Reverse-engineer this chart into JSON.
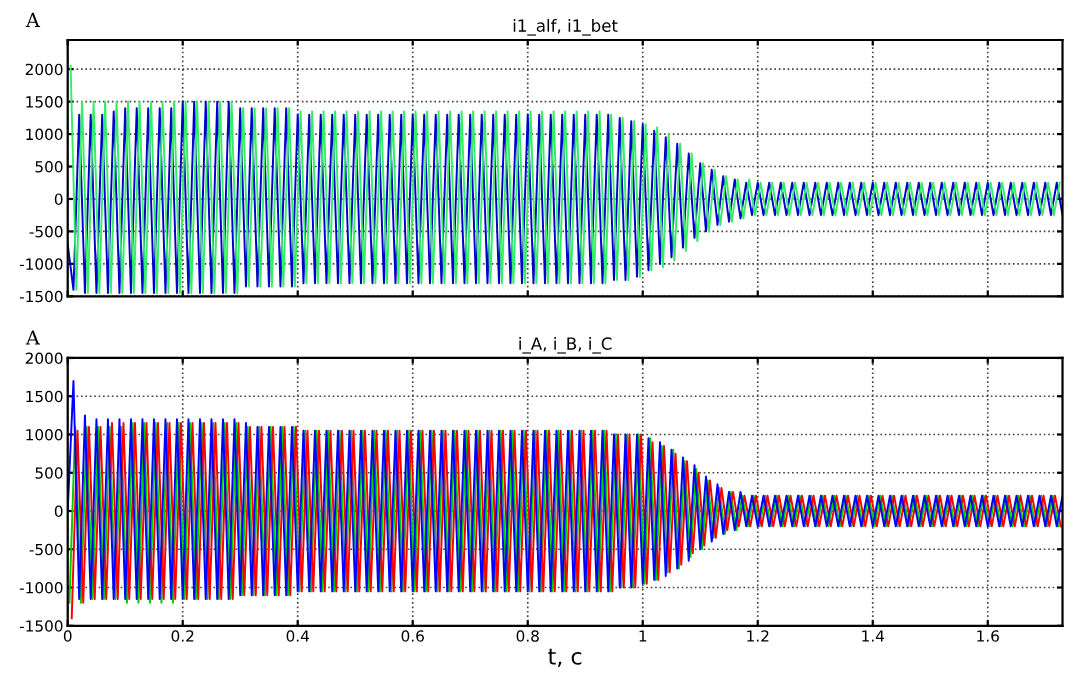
{
  "chart_data": [
    {
      "type": "line",
      "title": "i1_alf, i1_bet",
      "ylabel": "A",
      "xlim": [
        0,
        1.73
      ],
      "xticks": [
        0,
        0.2,
        0.4,
        0.6,
        0.8,
        1,
        1.2,
        1.4,
        1.6
      ],
      "ylim": [
        -1500,
        2450
      ],
      "yticks": [
        -1500,
        -1000,
        -500,
        0,
        500,
        1000,
        1500,
        2000
      ],
      "grid": true,
      "line_style": "solid",
      "tick_labels": "y",
      "series": [
        {
          "color": "#0000cc",
          "x": [
            0,
            0.01,
            0.02,
            0.03,
            0.04,
            0.05,
            0.06,
            0.07,
            0.08,
            0.09,
            0.1,
            0.11,
            0.12,
            0.13,
            0.14,
            0.15,
            0.16,
            0.17,
            0.18,
            0.19,
            0.2,
            0.21,
            0.22,
            0.23,
            0.24,
            0.25,
            0.26,
            0.27,
            0.28,
            0.29,
            0.3,
            0.31,
            0.32,
            0.33,
            0.34,
            0.35,
            0.36,
            0.37,
            0.38,
            0.39,
            0.4,
            0.41,
            0.42,
            0.43,
            0.44,
            0.45,
            0.46,
            0.47,
            0.48,
            0.49,
            0.5,
            0.51,
            0.52,
            0.53,
            0.54,
            0.55,
            0.56,
            0.57,
            0.58,
            0.59,
            0.6,
            0.61,
            0.62,
            0.63,
            0.64,
            0.65,
            0.66,
            0.67,
            0.68,
            0.69,
            0.7,
            0.71,
            0.72,
            0.73,
            0.74,
            0.75,
            0.76,
            0.77,
            0.78,
            0.79,
            0.8,
            0.81,
            0.82,
            0.83,
            0.84,
            0.85,
            0.86,
            0.87,
            0.88,
            0.89,
            0.9,
            0.91,
            0.92,
            0.93,
            0.94,
            0.95,
            0.96,
            0.97,
            0.98,
            0.99,
            1,
            1.01,
            1.02,
            1.03,
            1.04,
            1.05,
            1.06,
            1.07,
            1.08,
            1.09,
            1.1,
            1.11,
            1.12,
            1.13,
            1.14,
            1.15,
            1.16,
            1.17,
            1.18,
            1.19,
            1.2,
            1.21,
            1.22,
            1.23,
            1.24,
            1.25,
            1.26,
            1.27,
            1.28,
            1.29,
            1.3,
            1.31,
            1.32,
            1.33,
            1.34,
            1.35,
            1.36,
            1.37,
            1.38,
            1.39,
            1.4,
            1.41,
            1.42,
            1.43,
            1.44,
            1.45,
            1.46,
            1.47,
            1.48,
            1.49,
            1.5,
            1.51,
            1.52,
            1.53,
            1.54,
            1.55,
            1.56,
            1.57,
            1.58,
            1.59,
            1.6,
            1.61,
            1.62,
            1.63,
            1.64,
            1.65,
            1.66,
            1.67,
            1.68,
            1.69,
            1.7,
            1.71,
            1.72,
            1.73
          ],
          "values": [
            -700,
            -1400,
            1300,
            -1450,
            1300,
            -1450,
            1300,
            -1450,
            1350,
            -1450,
            1400,
            -1450,
            1400,
            -1450,
            1400,
            -1450,
            1400,
            -1450,
            1400,
            -1450,
            1500,
            -1450,
            1500,
            -1450,
            1500,
            -1450,
            1500,
            -1450,
            1500,
            -1450,
            1400,
            -1350,
            1400,
            -1350,
            1400,
            -1350,
            1400,
            -1350,
            1400,
            -1350,
            1300,
            -1300,
            1300,
            -1300,
            1300,
            -1300,
            1300,
            -1300,
            1300,
            -1300,
            1300,
            -1300,
            1300,
            -1300,
            1300,
            -1300,
            1300,
            -1300,
            1300,
            -1300,
            1300,
            -1300,
            1300,
            -1300,
            1300,
            -1300,
            1300,
            -1300,
            1300,
            -1300,
            1300,
            -1300,
            1300,
            -1300,
            1300,
            -1300,
            1300,
            -1300,
            1300,
            -1300,
            1300,
            -1300,
            1300,
            -1300,
            1300,
            -1300,
            1300,
            -1300,
            1300,
            -1300,
            1300,
            -1300,
            1300,
            -1300,
            1300,
            -1250,
            1250,
            -1250,
            1200,
            -1200,
            1150,
            -1100,
            1050,
            -1000,
            950,
            -900,
            850,
            -750,
            700,
            -600,
            550,
            -500,
            450,
            -400,
            350,
            -350,
            300,
            -300,
            250,
            -250,
            250,
            -250,
            250,
            -250,
            250,
            -250,
            250,
            -250,
            250,
            -250,
            250,
            -250,
            250,
            -250,
            250,
            -250,
            250,
            -250,
            250,
            -250,
            250,
            -250,
            250,
            -250,
            250,
            -250,
            250,
            -250,
            250,
            -250,
            250,
            -250,
            250,
            -250,
            250,
            -250,
            250,
            -250,
            250,
            -250,
            250,
            -250,
            250,
            -250,
            250,
            -250,
            250,
            -250,
            250,
            -250,
            250,
            -250,
            250,
            -250
          ]
        },
        {
          "color": "#33ee66",
          "x": [
            0.005,
            0.015,
            0.025,
            0.035,
            0.045,
            0.055,
            0.065,
            0.075,
            0.085,
            0.095,
            0.105,
            0.115,
            0.125,
            0.135,
            0.145,
            0.155,
            0.165,
            0.175,
            0.185,
            0.195,
            0.205,
            0.215,
            0.225,
            0.235,
            0.245,
            0.255,
            0.265,
            0.275,
            0.285,
            0.295,
            0.305,
            0.315,
            0.325,
            0.335,
            0.345,
            0.355,
            0.365,
            0.375,
            0.385,
            0.395,
            0.405,
            0.415,
            0.425,
            0.435,
            0.445,
            0.455,
            0.465,
            0.475,
            0.485,
            0.495,
            0.505,
            0.515,
            0.525,
            0.535,
            0.545,
            0.555,
            0.565,
            0.575,
            0.585,
            0.595,
            0.605,
            0.615,
            0.625,
            0.635,
            0.645,
            0.655,
            0.665,
            0.675,
            0.685,
            0.695,
            0.705,
            0.715,
            0.725,
            0.735,
            0.745,
            0.755,
            0.765,
            0.775,
            0.785,
            0.795,
            0.805,
            0.815,
            0.825,
            0.835,
            0.845,
            0.855,
            0.865,
            0.875,
            0.885,
            0.895,
            0.905,
            0.915,
            0.925,
            0.935,
            0.945,
            0.955,
            0.965,
            0.975,
            0.985,
            0.995,
            1.005,
            1.015,
            1.025,
            1.035,
            1.045,
            1.055,
            1.065,
            1.075,
            1.085,
            1.095,
            1.105,
            1.115,
            1.125,
            1.135,
            1.145,
            1.155,
            1.165,
            1.175,
            1.185,
            1.195,
            1.205,
            1.215,
            1.225,
            1.235,
            1.245,
            1.255,
            1.265,
            1.275,
            1.285,
            1.295,
            1.305,
            1.315,
            1.325,
            1.335,
            1.345,
            1.355,
            1.365,
            1.375,
            1.385,
            1.395,
            1.405,
            1.415,
            1.425,
            1.435,
            1.445,
            1.455,
            1.465,
            1.475,
            1.485,
            1.495,
            1.505,
            1.515,
            1.525,
            1.535,
            1.545,
            1.555,
            1.565,
            1.575,
            1.585,
            1.595,
            1.605,
            1.615,
            1.625,
            1.635,
            1.645,
            1.655,
            1.665,
            1.675,
            1.685,
            1.695,
            1.705,
            1.715,
            1.725
          ],
          "values": [
            2050,
            -1400,
            1500,
            -1450,
            1500,
            -1450,
            1500,
            -1450,
            1500,
            -1450,
            1500,
            -1450,
            1500,
            -1450,
            1500,
            -1450,
            1500,
            -1450,
            1500,
            -1450,
            1500,
            -1450,
            1500,
            -1450,
            1500,
            -1450,
            1500,
            -1450,
            1500,
            -1450,
            1400,
            -1350,
            1400,
            -1350,
            1400,
            -1350,
            1400,
            -1350,
            1400,
            -1350,
            1350,
            -1300,
            1350,
            -1300,
            1350,
            -1300,
            1350,
            -1300,
            1350,
            -1300,
            1350,
            -1300,
            1350,
            -1300,
            1350,
            -1300,
            1350,
            -1300,
            1350,
            -1300,
            1350,
            -1300,
            1350,
            -1300,
            1350,
            -1300,
            1350,
            -1300,
            1350,
            -1300,
            1350,
            -1300,
            1350,
            -1300,
            1350,
            -1300,
            1350,
            -1300,
            1350,
            -1300,
            1350,
            -1300,
            1350,
            -1300,
            1350,
            -1300,
            1350,
            -1300,
            1350,
            -1300,
            1350,
            -1300,
            1350,
            -1300,
            1300,
            -1250,
            1250,
            -1250,
            1200,
            -1200,
            1150,
            -1100,
            1100,
            -1050,
            1000,
            -950,
            850,
            -800,
            700,
            -650,
            550,
            -500,
            450,
            -400,
            350,
            -350,
            300,
            -300,
            300,
            -250,
            250,
            -250,
            250,
            -250,
            250,
            -250,
            250,
            -250,
            250,
            -250,
            250,
            -250,
            250,
            -250,
            250,
            -250,
            250,
            -250,
            250,
            -250,
            250,
            -250,
            250,
            -250,
            250,
            -250,
            250,
            -250,
            250,
            -250,
            250,
            -250,
            250,
            -250,
            250,
            -250,
            250,
            -250,
            250,
            -250,
            250,
            -250,
            250,
            -250,
            250,
            -250,
            250,
            -250,
            250,
            -250,
            250,
            -250,
            250
          ]
        }
      ]
    },
    {
      "type": "line",
      "title": "i_A, i_B, i_C",
      "xlabel": "t, c",
      "ylabel": "A",
      "xlim": [
        0,
        1.73
      ],
      "xticks": [
        0,
        0.2,
        0.4,
        0.6,
        0.8,
        1,
        1.2,
        1.4,
        1.6
      ],
      "ylim": [
        -1500,
        2000
      ],
      "yticks": [
        -1500,
        -1000,
        -500,
        0,
        500,
        1000,
        1500,
        2000
      ],
      "grid": true,
      "line_style": "solid",
      "series": [
        {
          "color": "#00cc00",
          "x": [
            0.003,
            0.013,
            0.023,
            0.033,
            0.043,
            0.053,
            0.063,
            0.073,
            0.083,
            0.093,
            0.103,
            0.113,
            0.123,
            0.133,
            0.143,
            0.153,
            0.163,
            0.173,
            0.183,
            0.193,
            0.203,
            0.213,
            0.223,
            0.233,
            0.243,
            0.253,
            0.263,
            0.273,
            0.283,
            0.293,
            0.303,
            0.313,
            0.323,
            0.333,
            0.343,
            0.353,
            0.363,
            0.373,
            0.383,
            0.393,
            0.403,
            0.413,
            0.423,
            0.433,
            0.443,
            0.453,
            0.463,
            0.473,
            0.483,
            0.493,
            0.503,
            0.513,
            0.523,
            0.533,
            0.543,
            0.553,
            0.563,
            0.573,
            0.583,
            0.593,
            0.603,
            0.613,
            0.623,
            0.633,
            0.643,
            0.653,
            0.663,
            0.673,
            0.683,
            0.693,
            0.703,
            0.713,
            0.723,
            0.733,
            0.743,
            0.753,
            0.763,
            0.773,
            0.783,
            0.793,
            0.803,
            0.813,
            0.823,
            0.833,
            0.843,
            0.853,
            0.863,
            0.873,
            0.883,
            0.893,
            0.903,
            0.913,
            0.923,
            0.933,
            0.943,
            0.953,
            0.963,
            0.973,
            0.983,
            0.993,
            1.003,
            1.013,
            1.023,
            1.033,
            1.043,
            1.053,
            1.063,
            1.073,
            1.083,
            1.093,
            1.103,
            1.113,
            1.123,
            1.133,
            1.143,
            1.153,
            1.163,
            1.173,
            1.183,
            1.193,
            1.203,
            1.213,
            1.223,
            1.233,
            1.243,
            1.253,
            1.263,
            1.273,
            1.283,
            1.293,
            1.303,
            1.313,
            1.323,
            1.333,
            1.343,
            1.353,
            1.363,
            1.373,
            1.383,
            1.393,
            1.403,
            1.413,
            1.423,
            1.433,
            1.443,
            1.453,
            1.463,
            1.473,
            1.483,
            1.493,
            1.503,
            1.513,
            1.523,
            1.533,
            1.543,
            1.553,
            1.563,
            1.573,
            1.583,
            1.593,
            1.603,
            1.613,
            1.623,
            1.633,
            1.643,
            1.653,
            1.663,
            1.673,
            1.683,
            1.693,
            1.703,
            1.713,
            1.723
          ],
          "values": [
            -1200,
            1100,
            -1200,
            1100,
            -1150,
            1100,
            -1150,
            1100,
            -1150,
            1100,
            -1200,
            1150,
            -1200,
            1150,
            -1200,
            1150,
            -1200,
            1150,
            -1200,
            1150,
            -1150,
            1150,
            -1150,
            1150,
            -1150,
            1150,
            -1150,
            1150,
            -1150,
            1150,
            -1100,
            1100,
            -1100,
            1100,
            -1100,
            1100,
            -1100,
            1100,
            -1100,
            1100,
            -1050,
            1050,
            -1050,
            1050,
            -1050,
            1050,
            -1050,
            1050,
            -1050,
            1050,
            -1050,
            1050,
            -1050,
            1050,
            -1050,
            1050,
            -1050,
            1050,
            -1050,
            1050,
            -1050,
            1050,
            -1050,
            1050,
            -1050,
            1050,
            -1050,
            1050,
            -1050,
            1050,
            -1050,
            1050,
            -1050,
            1050,
            -1050,
            1050,
            -1050,
            1050,
            -1050,
            1050,
            -1050,
            1050,
            -1050,
            1050,
            -1050,
            1050,
            -1050,
            1050,
            -1050,
            1050,
            -1050,
            1050,
            -1050,
            1050,
            -1050,
            1000,
            -1000,
            1000,
            -1000,
            1000,
            -950,
            950,
            -900,
            850,
            -800,
            800,
            -750,
            650,
            -600,
            550,
            -500,
            400,
            -350,
            300,
            -300,
            250,
            -250,
            200,
            -200,
            200,
            -200,
            200,
            -200,
            200,
            -200,
            200,
            -200,
            200,
            -200,
            200,
            -200,
            200,
            -200,
            200,
            -200,
            200,
            -200,
            200,
            -200,
            200,
            -200,
            200,
            -200,
            200,
            -200,
            200,
            -200,
            200,
            -200,
            200,
            -200,
            200,
            -200,
            200,
            -200,
            200,
            -200,
            200,
            -200,
            200,
            -200,
            200,
            -200,
            200,
            -200,
            200,
            -200,
            200,
            -200,
            200,
            -200,
            200,
            -200
          ]
        },
        {
          "color": "#ff0000",
          "x": [
            0.007,
            0.017,
            0.027,
            0.037,
            0.047,
            0.057,
            0.067,
            0.077,
            0.087,
            0.097,
            0.107,
            0.117,
            0.127,
            0.137,
            0.147,
            0.157,
            0.167,
            0.177,
            0.187,
            0.197,
            0.207,
            0.217,
            0.227,
            0.237,
            0.247,
            0.257,
            0.267,
            0.277,
            0.287,
            0.297,
            0.307,
            0.317,
            0.327,
            0.337,
            0.347,
            0.357,
            0.367,
            0.377,
            0.387,
            0.397,
            0.407,
            0.417,
            0.427,
            0.437,
            0.447,
            0.457,
            0.467,
            0.477,
            0.487,
            0.497,
            0.507,
            0.517,
            0.527,
            0.537,
            0.547,
            0.557,
            0.567,
            0.577,
            0.587,
            0.597,
            0.607,
            0.617,
            0.627,
            0.637,
            0.647,
            0.657,
            0.667,
            0.677,
            0.687,
            0.697,
            0.707,
            0.717,
            0.727,
            0.737,
            0.747,
            0.757,
            0.767,
            0.777,
            0.787,
            0.797,
            0.807,
            0.817,
            0.827,
            0.837,
            0.847,
            0.857,
            0.867,
            0.877,
            0.887,
            0.897,
            0.907,
            0.917,
            0.927,
            0.937,
            0.947,
            0.957,
            0.967,
            0.977,
            0.987,
            0.997,
            1.007,
            1.017,
            1.027,
            1.037,
            1.047,
            1.057,
            1.067,
            1.077,
            1.087,
            1.097,
            1.107,
            1.117,
            1.127,
            1.137,
            1.147,
            1.157,
            1.167,
            1.177,
            1.187,
            1.197,
            1.207,
            1.217,
            1.227,
            1.237,
            1.247,
            1.257,
            1.267,
            1.277,
            1.287,
            1.297,
            1.307,
            1.317,
            1.327,
            1.337,
            1.347,
            1.357,
            1.367,
            1.377,
            1.387,
            1.397,
            1.407,
            1.417,
            1.427,
            1.437,
            1.447,
            1.457,
            1.467,
            1.477,
            1.487,
            1.497,
            1.507,
            1.517,
            1.527,
            1.537,
            1.547,
            1.557,
            1.567,
            1.577,
            1.587,
            1.597,
            1.607,
            1.617,
            1.627,
            1.637,
            1.647,
            1.657,
            1.667,
            1.677,
            1.687,
            1.697,
            1.707,
            1.717,
            1.727
          ],
          "values": [
            -1400,
            1050,
            -1200,
            1100,
            -1150,
            1100,
            -1150,
            1150,
            -1150,
            1150,
            -1150,
            1150,
            -1150,
            1150,
            -1150,
            1150,
            -1150,
            1150,
            -1150,
            1150,
            -1150,
            1150,
            -1150,
            1150,
            -1150,
            1150,
            -1150,
            1150,
            -1150,
            1150,
            -1100,
            1100,
            -1100,
            1100,
            -1100,
            1100,
            -1100,
            1100,
            -1100,
            1100,
            -1050,
            1050,
            -1050,
            1050,
            -1050,
            1050,
            -1050,
            1050,
            -1050,
            1050,
            -1050,
            1050,
            -1050,
            1050,
            -1050,
            1050,
            -1050,
            1050,
            -1050,
            1050,
            -1050,
            1050,
            -1050,
            1050,
            -1050,
            1050,
            -1050,
            1050,
            -1050,
            1050,
            -1050,
            1050,
            -1050,
            1050,
            -1050,
            1050,
            -1050,
            1050,
            -1050,
            1050,
            -1050,
            1050,
            -1050,
            1050,
            -1050,
            1050,
            -1050,
            1050,
            -1050,
            1050,
            -1050,
            1050,
            -1050,
            1050,
            -1050,
            1000,
            -1000,
            1000,
            -1000,
            1000,
            -950,
            900,
            -900,
            850,
            -800,
            750,
            -700,
            650,
            -550,
            500,
            -450,
            400,
            -350,
            300,
            -250,
            250,
            -200,
            200,
            -200,
            200,
            -200,
            200,
            -200,
            200,
            -200,
            200,
            -200,
            200,
            -200,
            200,
            -200,
            200,
            -200,
            200,
            -200,
            200,
            -200,
            200,
            -200,
            200,
            -200,
            200,
            -200,
            200,
            -200,
            200,
            -200,
            200,
            -200,
            200,
            -200,
            200,
            -200,
            200,
            -200,
            200,
            -200,
            200,
            -200,
            200,
            -200,
            200,
            -200,
            200,
            -200,
            200,
            -200,
            200,
            -200,
            200,
            -200,
            200,
            -200
          ]
        },
        {
          "color": "#0000ff",
          "x": [
            0,
            0.01,
            0.02,
            0.03,
            0.04,
            0.05,
            0.06,
            0.07,
            0.08,
            0.09,
            0.1,
            0.11,
            0.12,
            0.13,
            0.14,
            0.15,
            0.16,
            0.17,
            0.18,
            0.19,
            0.2,
            0.21,
            0.22,
            0.23,
            0.24,
            0.25,
            0.26,
            0.27,
            0.28,
            0.29,
            0.3,
            0.31,
            0.32,
            0.33,
            0.34,
            0.35,
            0.36,
            0.37,
            0.38,
            0.39,
            0.4,
            0.41,
            0.42,
            0.43,
            0.44,
            0.45,
            0.46,
            0.47,
            0.48,
            0.49,
            0.5,
            0.51,
            0.52,
            0.53,
            0.54,
            0.55,
            0.56,
            0.57,
            0.58,
            0.59,
            0.6,
            0.61,
            0.62,
            0.63,
            0.64,
            0.65,
            0.66,
            0.67,
            0.68,
            0.69,
            0.7,
            0.71,
            0.72,
            0.73,
            0.74,
            0.75,
            0.76,
            0.77,
            0.78,
            0.79,
            0.8,
            0.81,
            0.82,
            0.83,
            0.84,
            0.85,
            0.86,
            0.87,
            0.88,
            0.89,
            0.9,
            0.91,
            0.92,
            0.93,
            0.94,
            0.95,
            0.96,
            0.97,
            0.98,
            0.99,
            1,
            1.01,
            1.02,
            1.03,
            1.04,
            1.05,
            1.06,
            1.07,
            1.08,
            1.09,
            1.1,
            1.11,
            1.12,
            1.13,
            1.14,
            1.15,
            1.16,
            1.17,
            1.18,
            1.19,
            1.2,
            1.21,
            1.22,
            1.23,
            1.24,
            1.25,
            1.26,
            1.27,
            1.28,
            1.29,
            1.3,
            1.31,
            1.32,
            1.33,
            1.34,
            1.35,
            1.36,
            1.37,
            1.38,
            1.39,
            1.4,
            1.41,
            1.42,
            1.43,
            1.44,
            1.45,
            1.46,
            1.47,
            1.48,
            1.49,
            1.5,
            1.51,
            1.52,
            1.53,
            1.54,
            1.55,
            1.56,
            1.57,
            1.58,
            1.59,
            1.6,
            1.61,
            1.62,
            1.63,
            1.64,
            1.65,
            1.66,
            1.67,
            1.68,
            1.69,
            1.7,
            1.71,
            1.72,
            1.73
          ],
          "values": [
            0,
            1700,
            -1150,
            1250,
            -1150,
            1200,
            -1150,
            1200,
            -1150,
            1200,
            -1150,
            1200,
            -1150,
            1200,
            -1150,
            1200,
            -1150,
            1200,
            -1150,
            1200,
            -1150,
            1200,
            -1150,
            1200,
            -1150,
            1200,
            -1150,
            1200,
            -1150,
            1200,
            -1100,
            1150,
            -1100,
            1100,
            -1100,
            1100,
            -1100,
            1100,
            -1100,
            1100,
            -1050,
            1050,
            -1050,
            1050,
            -1050,
            1050,
            -1050,
            1050,
            -1050,
            1050,
            -1050,
            1050,
            -1050,
            1050,
            -1050,
            1050,
            -1050,
            1050,
            -1050,
            1050,
            -1050,
            1050,
            -1050,
            1050,
            -1050,
            1050,
            -1050,
            1050,
            -1050,
            1050,
            -1050,
            1050,
            -1050,
            1050,
            -1050,
            1050,
            -1050,
            1050,
            -1050,
            1050,
            -1050,
            1050,
            -1050,
            1050,
            -1050,
            1050,
            -1050,
            1050,
            -1050,
            1050,
            -1050,
            1050,
            -1050,
            1050,
            -1050,
            1000,
            -1000,
            1000,
            -1000,
            1000,
            -950,
            950,
            -900,
            900,
            -850,
            800,
            -750,
            700,
            -650,
            600,
            -500,
            450,
            -400,
            350,
            -300,
            250,
            -250,
            250,
            -200,
            200,
            -200,
            200,
            -200,
            200,
            -200,
            200,
            -200,
            200,
            -200,
            200,
            -200,
            200,
            -200,
            200,
            -200,
            200,
            -200,
            200,
            -200,
            200,
            -200,
            200,
            -200,
            200,
            -200,
            200,
            -200,
            200,
            -200,
            200,
            -200,
            200,
            -200,
            200,
            -200,
            200,
            -200,
            200,
            -200,
            200,
            -200,
            200,
            -200,
            200,
            -200,
            200,
            -200,
            200,
            -200,
            200,
            -200,
            200,
            -200,
            200
          ]
        }
      ]
    }
  ]
}
